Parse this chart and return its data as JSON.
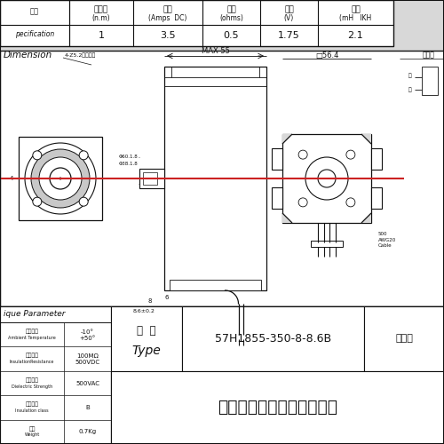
{
  "bg_color": "#d8d8d8",
  "white": "#ffffff",
  "black": "#111111",
  "gray_mid": "#b8b8b8",
  "red_line": "#cc2222",
  "headers_cn": [
    "静力矩",
    "电流",
    "电阻",
    "电压",
    "电感"
  ],
  "headers_en": [
    "(n.m)",
    "(Amps  DC)",
    "(ohms)",
    "(V)",
    "(mH   IKH"
  ],
  "table_values": [
    "1",
    "3.5",
    "0.5",
    "1.75",
    "2.1"
  ],
  "bottom_type_cn": "型  号",
  "bottom_type_en": "Type",
  "bottom_model": "57H1855-350-8-8.6B",
  "bottom_tech": "技术规",
  "bottom_company": "常州市鸥柯达电器有限公司",
  "param_rows": [
    [
      "环境温度",
      "Ambient Temperature",
      "-10°",
      "+50°"
    ],
    [
      "绝缘电阻",
      "InsulationResistance",
      "100MΩ",
      "500VDC"
    ],
    [
      "介电强度",
      "Dielectric Strength",
      "500VAC",
      ""
    ],
    [
      "绝缘等级",
      "Insulation class",
      "B",
      ""
    ],
    [
      "重量",
      "Weight",
      "0.7Kg",
      ""
    ]
  ]
}
